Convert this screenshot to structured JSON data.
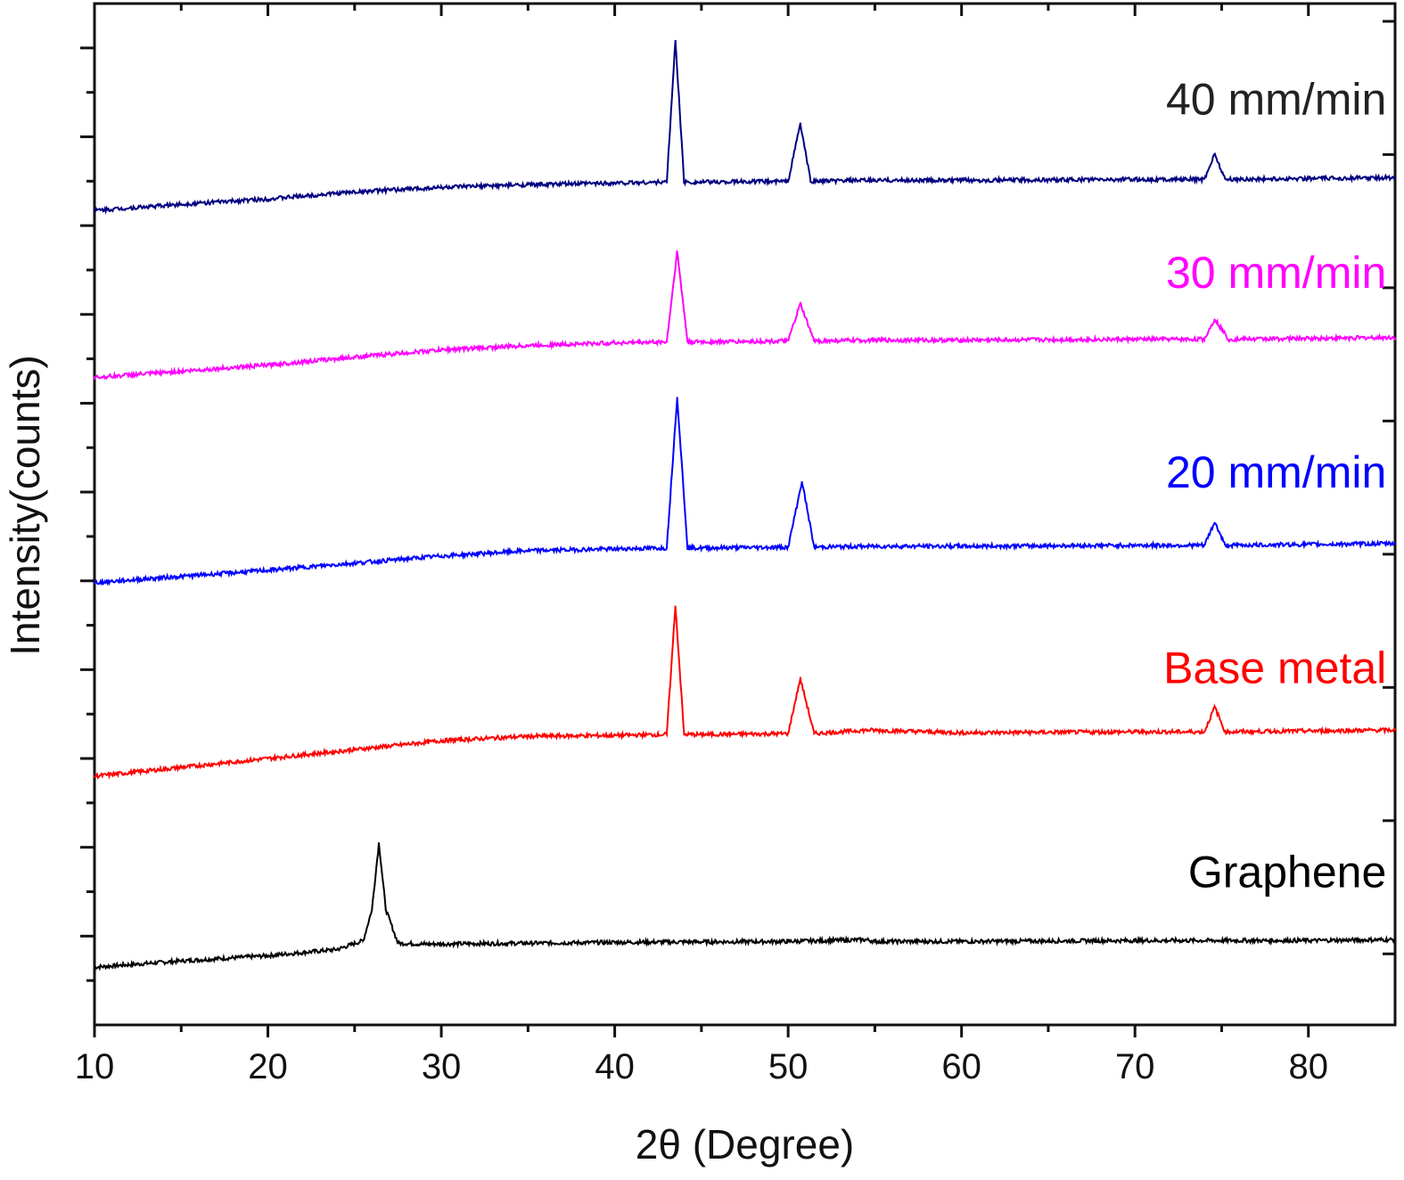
{
  "chart_data": {
    "type": "line",
    "xlabel": "2θ (Degree)",
    "ylabel": "Intensity(counts)",
    "xlim": [
      10,
      85
    ],
    "ylim": [
      0,
      11.5
    ],
    "x_ticks": [
      10,
      20,
      30,
      40,
      50,
      60,
      70,
      80
    ],
    "x_tick_labels": [
      "10",
      "20",
      "30",
      "40",
      "50",
      "60",
      "70",
      "80"
    ],
    "y_tick_labels_shown": false,
    "grid": false,
    "series": [
      {
        "name": "Graphene",
        "color": "#000000",
        "x": [
          10,
          15,
          20,
          24,
          25.5,
          26,
          26.4,
          26.8,
          27.5,
          29,
          35,
          40,
          50,
          54.5,
          55,
          60,
          70,
          80,
          85
        ],
        "y": [
          0.65,
          0.72,
          0.78,
          0.85,
          0.95,
          1.3,
          2.05,
          1.3,
          0.92,
          0.91,
          0.92,
          0.93,
          0.94,
          0.96,
          0.94,
          0.94,
          0.95,
          0.95,
          0.96
        ]
      },
      {
        "name": "Base metal",
        "color": "#ff0000",
        "x": [
          10,
          15,
          20,
          25,
          30,
          35,
          40,
          43,
          43.5,
          44,
          45,
          50,
          50.7,
          51.5,
          54.5,
          60,
          70,
          74,
          74.6,
          75.2,
          80,
          85
        ],
        "y": [
          2.8,
          2.9,
          3.0,
          3.1,
          3.2,
          3.25,
          3.26,
          3.27,
          4.72,
          3.27,
          3.27,
          3.28,
          3.9,
          3.28,
          3.32,
          3.29,
          3.3,
          3.3,
          3.58,
          3.3,
          3.31,
          3.32
        ]
      },
      {
        "name": "20 mm/min",
        "color": "#0000ff",
        "x": [
          10,
          15,
          20,
          25,
          30,
          35,
          40,
          43,
          43.6,
          44.2,
          45,
          50,
          50.8,
          51.5,
          55,
          60,
          70,
          74,
          74.6,
          75.2,
          80,
          85
        ],
        "y": [
          4.98,
          5.05,
          5.12,
          5.2,
          5.28,
          5.34,
          5.36,
          5.37,
          7.07,
          5.37,
          5.37,
          5.38,
          6.12,
          5.38,
          5.39,
          5.39,
          5.4,
          5.4,
          5.66,
          5.4,
          5.41,
          5.42
        ]
      },
      {
        "name": "30 mm/min",
        "color": "#ff00ff",
        "x": [
          10,
          15,
          20,
          25,
          30,
          35,
          40,
          43,
          43.6,
          44.2,
          45,
          50,
          50.7,
          51.5,
          55,
          60,
          70,
          74,
          74.6,
          75.4,
          80,
          85
        ],
        "y": [
          7.29,
          7.36,
          7.43,
          7.52,
          7.6,
          7.65,
          7.68,
          7.69,
          8.71,
          7.69,
          7.69,
          7.7,
          8.12,
          7.7,
          7.71,
          7.71,
          7.72,
          7.72,
          7.95,
          7.72,
          7.73,
          7.74
        ]
      },
      {
        "name": "40 mm/min",
        "color": "#000080",
        "x": [
          10,
          15,
          20,
          25,
          30,
          35,
          40,
          43,
          43.5,
          44,
          45,
          50,
          50.7,
          51.3,
          55,
          60,
          70,
          74,
          74.6,
          75.2,
          80,
          85
        ],
        "y": [
          9.17,
          9.24,
          9.3,
          9.38,
          9.43,
          9.46,
          9.48,
          9.49,
          11.09,
          9.49,
          9.49,
          9.5,
          10.15,
          9.5,
          9.51,
          9.51,
          9.52,
          9.52,
          9.81,
          9.52,
          9.53,
          9.54
        ]
      }
    ],
    "series_labels": [
      {
        "text": "40 mm/min",
        "color": "#222222",
        "at_x": 84.5,
        "at_y": 10.25
      },
      {
        "text": "30 mm/min",
        "color": "#ff00ff",
        "at_x": 84.5,
        "at_y": 8.3
      },
      {
        "text": "20 mm/min",
        "color": "#0000ff",
        "at_x": 84.5,
        "at_y": 6.05
      },
      {
        "text": "Base metal",
        "color": "#ff0000",
        "at_x": 84.5,
        "at_y": 3.85
      },
      {
        "text": "Graphene",
        "color": "#000000",
        "at_x": 84.5,
        "at_y": 1.55
      }
    ]
  }
}
